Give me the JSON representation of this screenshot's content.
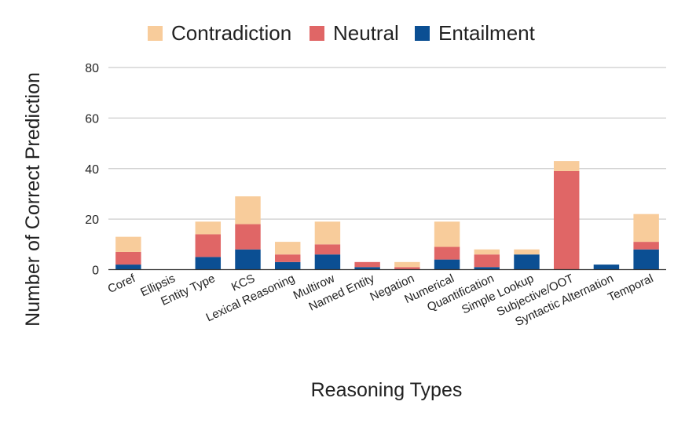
{
  "chart_data": {
    "type": "bar",
    "stacked": true,
    "categories": [
      "Coref",
      "Ellipsis",
      "Entity Type",
      "KCS",
      "Lexical Reasoning",
      "Multirow",
      "Named Entity",
      "Negation",
      "Numerical",
      "Quantification",
      "Simple Lookup",
      "Subjective/OOT",
      "Syntactic Alternation",
      "Temporal"
    ],
    "series": [
      {
        "name": "Entailment",
        "color": "#0b4f93",
        "values": [
          2,
          0,
          5,
          8,
          3,
          6,
          1,
          0,
          4,
          1,
          6,
          0,
          2,
          8
        ]
      },
      {
        "name": "Neutral",
        "color": "#e06666",
        "values": [
          5,
          0,
          9,
          10,
          3,
          4,
          2,
          1,
          5,
          5,
          0,
          39,
          0,
          3
        ]
      },
      {
        "name": "Contradiction",
        "color": "#f8cc9b",
        "values": [
          6,
          0,
          5,
          11,
          5,
          9,
          0,
          2,
          10,
          2,
          2,
          4,
          0,
          11
        ]
      }
    ],
    "legend_order": [
      "Contradiction",
      "Neutral",
      "Entailment"
    ],
    "legend_position": "top",
    "xlabel": "Reasoning Types",
    "ylabel": "Number of Correct Prediction",
    "ylim": [
      0,
      80
    ],
    "yticks": [
      0,
      20,
      40,
      60,
      80
    ],
    "grid": true
  }
}
